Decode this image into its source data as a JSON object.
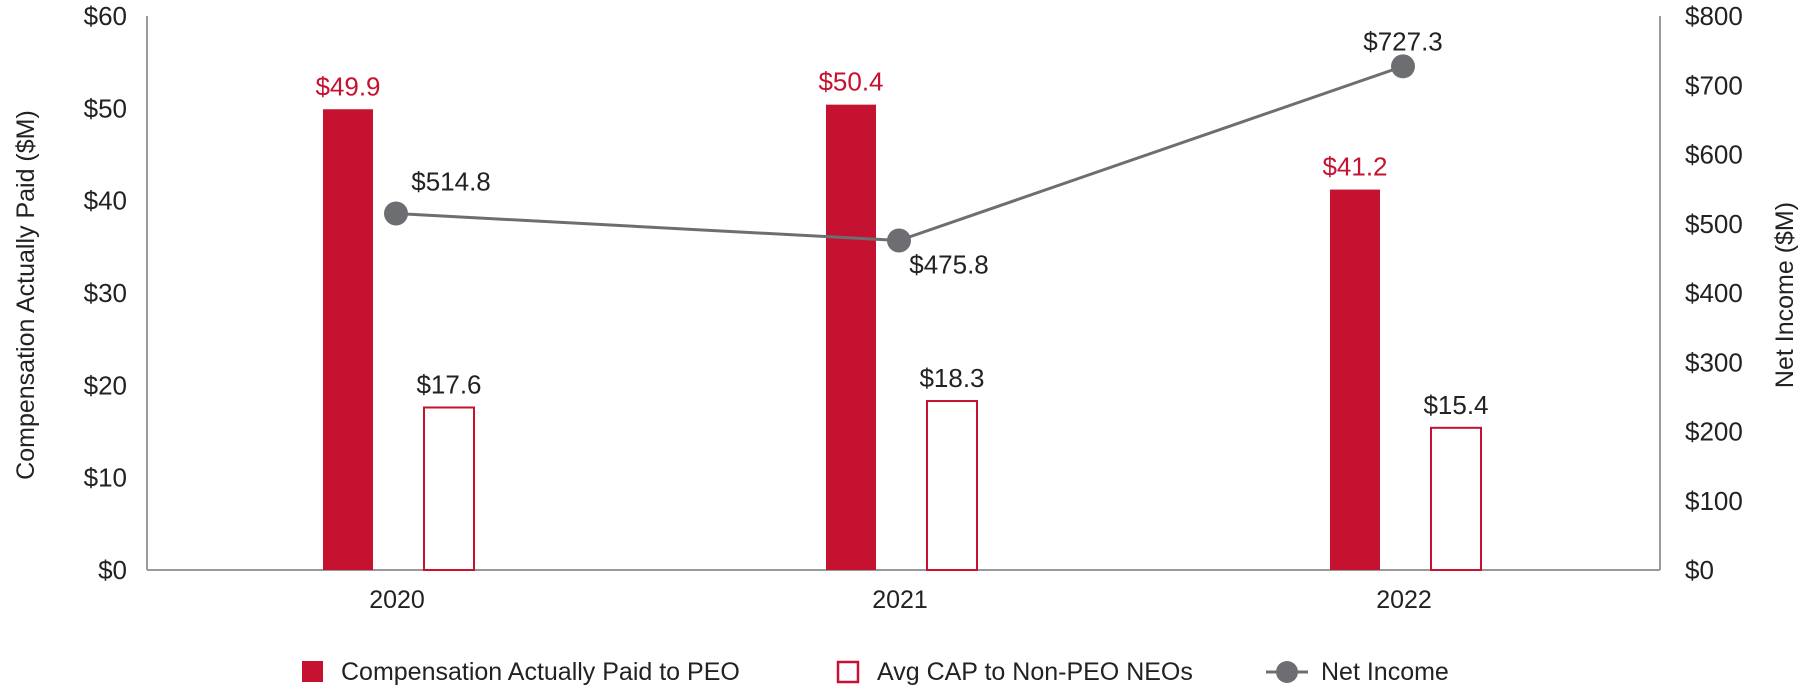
{
  "chart_data": {
    "type": "bar",
    "title": "",
    "categories": [
      "2020",
      "2021",
      "2022"
    ],
    "ylabel": "Compensation Actually Paid ($M)",
    "ylabel_right": "Net Income ($M)",
    "ylim": [
      0,
      60
    ],
    "ylim_right": [
      0,
      800
    ],
    "yticks": [
      "$0",
      "$10",
      "$20",
      "$30",
      "$40",
      "$50",
      "$60"
    ],
    "yticks_right": [
      "$0",
      "$100",
      "$200",
      "$300",
      "$400",
      "$500",
      "$600",
      "$700",
      "$800"
    ],
    "grid": false,
    "legend_position": "bottom",
    "series": [
      {
        "name": "Compensation Actually Paid to PEO",
        "type": "bar",
        "axis": "left",
        "style": "filled",
        "color": "#c41230",
        "values": [
          49.9,
          50.4,
          41.2
        ],
        "labels": [
          "$49.9",
          "$50.4",
          "$41.2"
        ],
        "label_color": "#c41230"
      },
      {
        "name": "Avg CAP to Non-PEO NEOs",
        "type": "bar",
        "axis": "left",
        "style": "outline",
        "color": "#c41230",
        "values": [
          17.6,
          18.3,
          15.4
        ],
        "labels": [
          "$17.6",
          "$18.3",
          "$15.4"
        ],
        "label_color": "#222222"
      },
      {
        "name": "Net Income",
        "type": "line",
        "axis": "right",
        "color": "#6d6e71",
        "values": [
          514.8,
          475.8,
          727.3
        ],
        "labels": [
          "$514.8",
          "$475.8",
          "$727.3"
        ],
        "label_color": "#222222"
      }
    ]
  }
}
